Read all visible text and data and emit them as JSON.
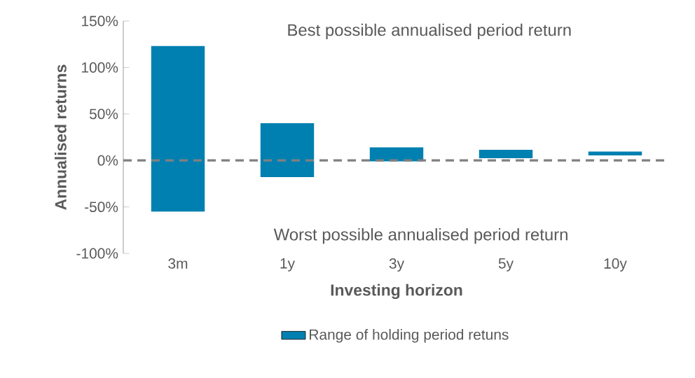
{
  "chart_data": {
    "type": "bar",
    "xlabel": "Investing horizon",
    "ylabel": "Annualised returns",
    "categories": [
      "3m",
      "1y",
      "3y",
      "5y",
      "10y"
    ],
    "series": [
      {
        "name": "Range of holding period retuns",
        "color": "#0080b0",
        "values": [
          178,
          58,
          15,
          9,
          4
        ],
        "base": [
          -55,
          -18,
          -1,
          2.5,
          5.5
        ]
      }
    ],
    "ylim": [
      -100,
      150
    ],
    "yticks": [
      {
        "value": -100,
        "label": "-100%"
      },
      {
        "value": -50,
        "label": "-50%"
      },
      {
        "value": 0,
        "label": "0%"
      },
      {
        "value": 50,
        "label": "50%"
      },
      {
        "value": 100,
        "label": "100%"
      },
      {
        "value": 150,
        "label": "150%"
      }
    ],
    "ref_lines": [
      {
        "axis": "y",
        "value": 0,
        "color": "#808080",
        "line_style": "dashed"
      }
    ],
    "legend": "bottom",
    "annotations": [
      "Best possible annualised period return",
      "Worst possible annualised period return"
    ]
  }
}
